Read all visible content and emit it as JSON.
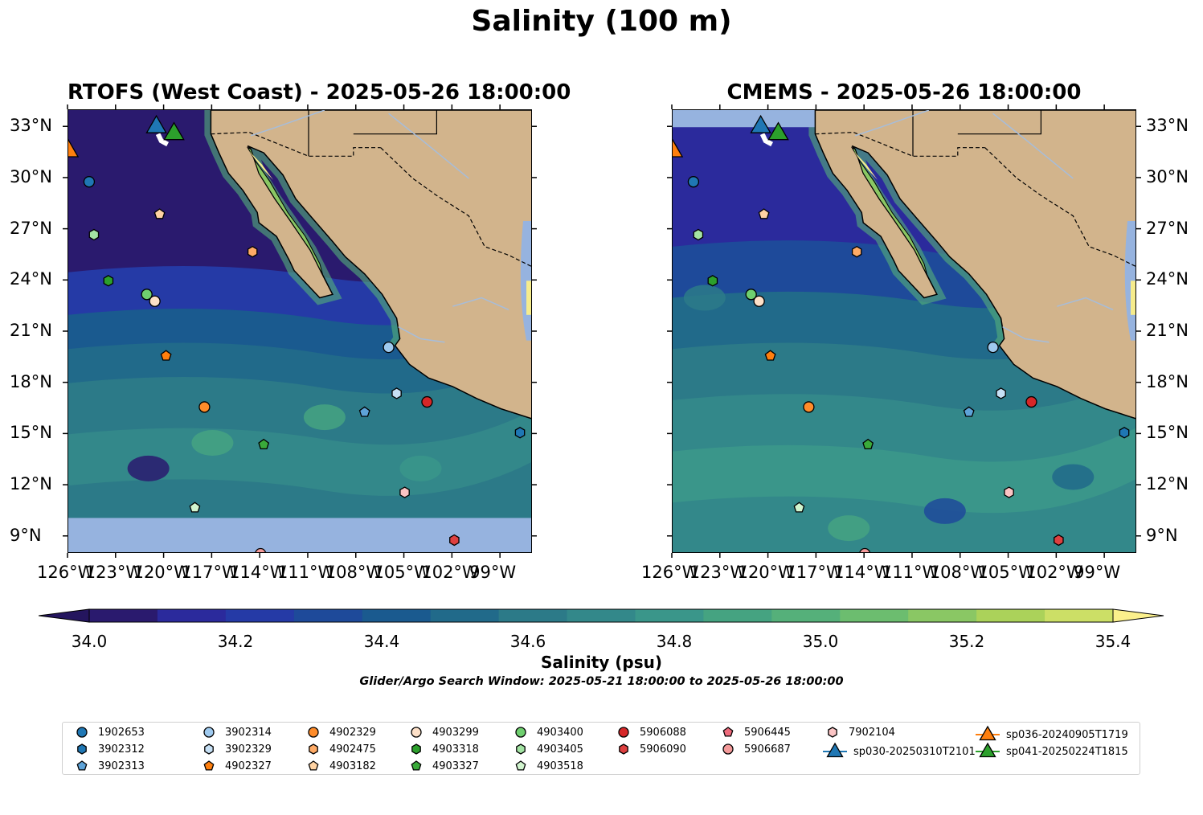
{
  "suptitle": "Salinity (100 m)",
  "panels": [
    {
      "title": "RTOFS (West Coast) - 2025-05-26 18:00:00"
    },
    {
      "title": "CMEMS - 2025-05-26 18:00:00"
    }
  ],
  "lat_labels": [
    "33°N",
    "30°N",
    "27°N",
    "24°N",
    "21°N",
    "18°N",
    "15°N",
    "12°N",
    "9°N"
  ],
  "lon_labels": [
    "126°W",
    "123°W",
    "120°W",
    "117°W",
    "114°W",
    "111°W",
    "108°W",
    "105°W",
    "102°W",
    "99°W"
  ],
  "colorbar": {
    "label": "Salinity (psu)",
    "ticks": [
      "34.0",
      "34.2",
      "34.4",
      "34.6",
      "34.8",
      "35.0",
      "35.2",
      "35.4"
    ],
    "colors": [
      "#2a1a6e",
      "#2b2a9c",
      "#253aa6",
      "#1e4a9a",
      "#1a5a8f",
      "#216a8a",
      "#2c7a88",
      "#33888a",
      "#3a968a",
      "#45a381",
      "#55b07a",
      "#6cbd6f",
      "#8ac764",
      "#abd25a",
      "#ccdf66",
      "#f6ec8c"
    ],
    "under_color": "#24155e",
    "over_color": "#fbf08c"
  },
  "search_window": "Glider/Argo Search Window: 2025-05-21 18:00:00 to 2025-05-26 18:00:00",
  "legend": [
    {
      "label": "1902653",
      "marker": "circle",
      "color": "#1f77b4"
    },
    {
      "label": "3902312",
      "marker": "hexagon",
      "color": "#1f77b4"
    },
    {
      "label": "3902313",
      "marker": "pentagon",
      "color": "#5ea3d8"
    },
    {
      "label": "3902314",
      "marker": "circle",
      "color": "#9fcaef"
    },
    {
      "label": "3902329",
      "marker": "hexagon",
      "color": "#c6e0f5"
    },
    {
      "label": "4902327",
      "marker": "pentagon",
      "color": "#ff7f0e"
    },
    {
      "label": "4902329",
      "marker": "circle",
      "color": "#ff8c2a"
    },
    {
      "label": "4902475",
      "marker": "hexagon",
      "color": "#ffab66"
    },
    {
      "label": "4903182",
      "marker": "pentagon",
      "color": "#ffd3a3"
    },
    {
      "label": "4903299",
      "marker": "circle",
      "color": "#fde0c8"
    },
    {
      "label": "4903318",
      "marker": "hexagon",
      "color": "#2ca02c"
    },
    {
      "label": "4903327",
      "marker": "pentagon",
      "color": "#3aaa3a"
    },
    {
      "label": "4903400",
      "marker": "circle",
      "color": "#6fcf6f"
    },
    {
      "label": "4903405",
      "marker": "hexagon",
      "color": "#a3e3a3"
    },
    {
      "label": "4903518",
      "marker": "pentagon",
      "color": "#d2f5cf"
    },
    {
      "label": "5906088",
      "marker": "circle",
      "color": "#d62728"
    },
    {
      "label": "5906090",
      "marker": "hexagon",
      "color": "#de4040"
    },
    {
      "label": "5906445",
      "marker": "pentagon",
      "color": "#ee6b7c"
    },
    {
      "label": "5906687",
      "marker": "circle",
      "color": "#f49a9a"
    },
    {
      "label": "7902104",
      "marker": "hexagon",
      "color": "#fbc4c4"
    },
    {
      "label": "sp030-20250310T2101",
      "marker": "triangle",
      "color": "#1f77b4"
    },
    {
      "label": "sp036-20240905T1719",
      "marker": "triangle",
      "color": "#ff7f0e"
    },
    {
      "label": "sp041-20250224T1815",
      "marker": "triangle",
      "color": "#2ca02c"
    }
  ],
  "floats": [
    {
      "id": "1902653",
      "lon": -124.7,
      "lat": 29.8,
      "marker": "circle",
      "color": "#1f77b4"
    },
    {
      "id": "4903405",
      "lon": -124.4,
      "lat": 26.7,
      "marker": "hexagon",
      "color": "#a3e3a3"
    },
    {
      "id": "4903318",
      "lon": -123.5,
      "lat": 24.0,
      "marker": "hexagon",
      "color": "#2ca02c"
    },
    {
      "id": "4903182",
      "lon": -120.3,
      "lat": 27.9,
      "marker": "pentagon",
      "color": "#ffd3a3"
    },
    {
      "id": "4902475",
      "lon": -114.5,
      "lat": 25.7,
      "marker": "hexagon",
      "color": "#ffab66"
    },
    {
      "id": "4903400",
      "lon": -121.1,
      "lat": 23.2,
      "marker": "circle",
      "color": "#6fcf6f"
    },
    {
      "id": "4903299",
      "lon": -120.6,
      "lat": 22.8,
      "marker": "circle",
      "color": "#fde0c8"
    },
    {
      "id": "4902327",
      "lon": -119.9,
      "lat": 19.6,
      "marker": "pentagon",
      "color": "#ff7f0e"
    },
    {
      "id": "3902314",
      "lon": -106.0,
      "lat": 20.1,
      "marker": "circle",
      "color": "#9fcaef"
    },
    {
      "id": "3902329",
      "lon": -105.5,
      "lat": 17.4,
      "marker": "hexagon",
      "color": "#c6e0f5"
    },
    {
      "id": "5906088",
      "lon": -103.6,
      "lat": 16.9,
      "marker": "circle",
      "color": "#d62728"
    },
    {
      "id": "3902313",
      "lon": -107.5,
      "lat": 16.3,
      "marker": "pentagon",
      "color": "#5ea3d8"
    },
    {
      "id": "4902329",
      "lon": -117.5,
      "lat": 16.6,
      "marker": "circle",
      "color": "#ff8c2a"
    },
    {
      "id": "4903327",
      "lon": -113.8,
      "lat": 14.4,
      "marker": "pentagon",
      "color": "#3aaa3a"
    },
    {
      "id": "3902312",
      "lon": -97.8,
      "lat": 15.1,
      "marker": "hexagon",
      "color": "#1f77b4"
    },
    {
      "id": "7902104",
      "lon": -105.0,
      "lat": 11.6,
      "marker": "hexagon",
      "color": "#fbc4c4"
    },
    {
      "id": "4903518",
      "lon": -118.1,
      "lat": 10.7,
      "marker": "pentagon",
      "color": "#d2f5cf"
    },
    {
      "id": "5906090",
      "lon": -101.9,
      "lat": 8.8,
      "marker": "hexagon",
      "color": "#de4040"
    },
    {
      "id": "5906687",
      "lon": -114.0,
      "lat": 8.0,
      "marker": "circle",
      "color": "#f49a9a"
    },
    {
      "id": "sp030-20250310T2101",
      "lon": -120.5,
      "lat": 33.0,
      "marker": "triangle",
      "color": "#1f77b4"
    },
    {
      "id": "sp041-20250224T1815",
      "lon": -119.4,
      "lat": 32.6,
      "marker": "triangle",
      "color": "#2ca02c"
    },
    {
      "id": "sp036-20240905T1719",
      "lon": -126.0,
      "lat": 31.6,
      "marker": "triangle",
      "color": "#ff7f0e"
    }
  ],
  "map_colors": {
    "land": "#d2b48c",
    "no_data": "#96b3df",
    "coast": "#000000",
    "rivers": "#a6bddb"
  },
  "extent": {
    "lon": [
      -126.0,
      -97.0
    ],
    "lat": [
      8.0,
      34.0
    ]
  }
}
